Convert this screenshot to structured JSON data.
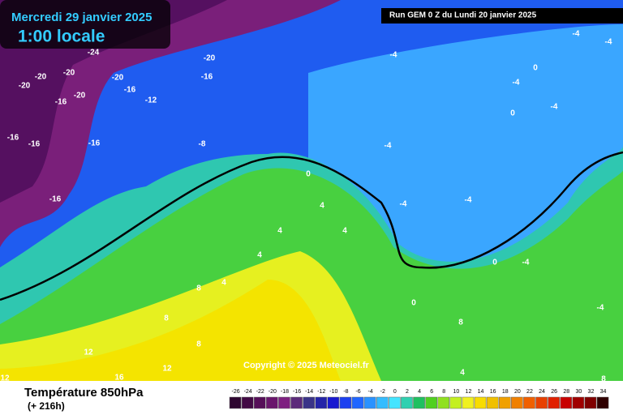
{
  "header": {
    "date": "Mercredi 29 janvier 2025",
    "time": "1:00 locale",
    "run": "Run GEM 0 Z du Lundi 20 janvier 2025"
  },
  "copyright": "Copyright © 2025 Meteociel.fr",
  "footer": {
    "title": "Température 850hPa",
    "lead": "(+ 216h)"
  },
  "scale": {
    "values": [
      -26,
      -24,
      -22,
      -20,
      -18,
      -16,
      -14,
      -12,
      -10,
      -8,
      -6,
      -4,
      -2,
      0,
      2,
      4,
      6,
      8,
      10,
      12,
      14,
      16,
      18,
      20,
      22,
      24,
      26,
      28,
      30,
      32,
      34
    ],
    "colors": [
      "#2e0630",
      "#420a44",
      "#560f58",
      "#6a166c",
      "#7e2080",
      "#5c2a7a",
      "#3a3488",
      "#2424a8",
      "#1818d0",
      "#1c40f0",
      "#2066ff",
      "#2a92ff",
      "#34bcff",
      "#44e4ff",
      "#30d0b0",
      "#20c060",
      "#50d020",
      "#90e020",
      "#c4f020",
      "#f0f020",
      "#f8dc00",
      "#f0c000",
      "#f0a000",
      "#f08000",
      "#f06000",
      "#e84000",
      "#e02000",
      "#c80000",
      "#a00000",
      "#800000",
      "#300000"
    ]
  },
  "contour_labels": [
    -24,
    -20,
    -20,
    -20,
    -20,
    -16,
    -16,
    -12,
    -16,
    -20,
    -20,
    -16,
    -16,
    -16,
    -8,
    -16,
    -4,
    -4,
    -4,
    0,
    -4,
    0,
    -4,
    -4,
    0,
    -4,
    -4,
    4,
    4,
    4,
    4,
    0,
    -4,
    4,
    8,
    8,
    0,
    8,
    8,
    12,
    16,
    12,
    12,
    4,
    -4,
    8
  ]
}
